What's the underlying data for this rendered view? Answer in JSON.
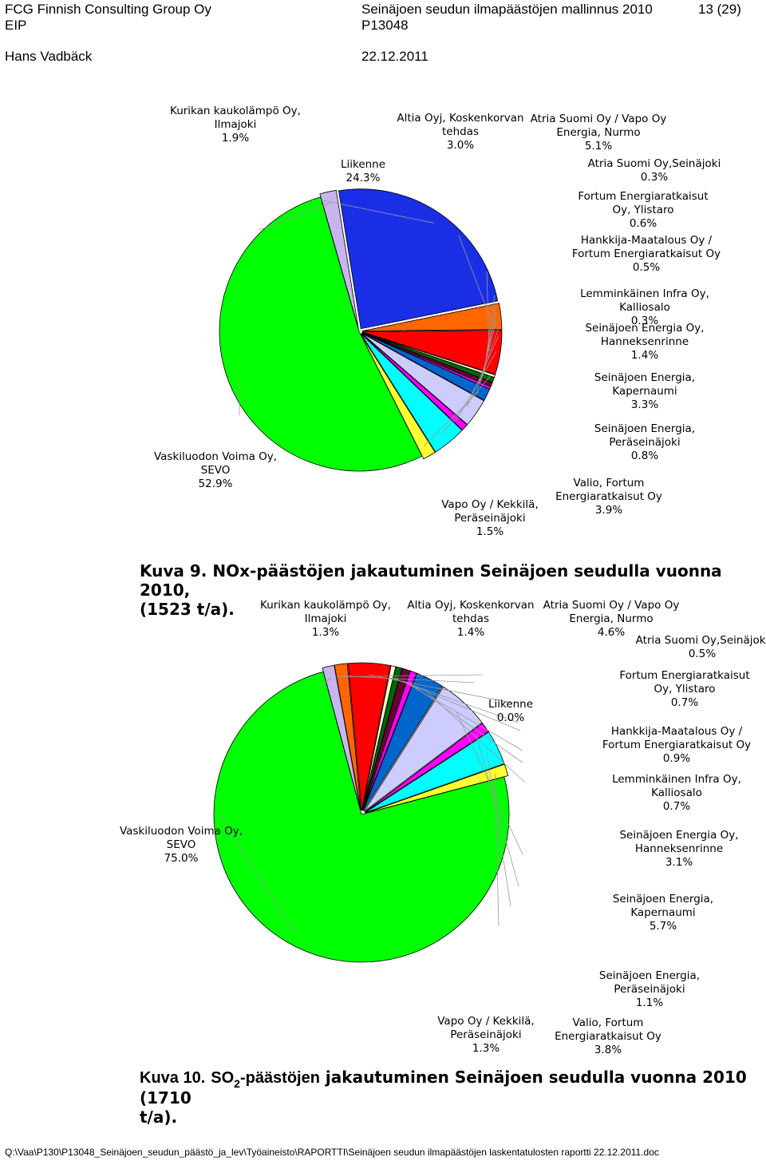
{
  "header": {
    "company": "FCG Finnish Consulting Group Oy",
    "unit": "EIP",
    "author": "Hans Vadbäck",
    "report_title": "Seinäjoen seudun ilmapäästöjen mallinnus 2010",
    "project": "P13048",
    "date": "22.12.2011",
    "page": "13 (29)"
  },
  "caption9": {
    "label": "Kuva 9.",
    "text": "NOx-päästöjen jakautuminen Seinäjoen seudulla vuonna 2010,",
    "text2": "(1523 t/a)."
  },
  "caption10": {
    "label": "Kuva 10.",
    "pre": "SO",
    "sub": "2",
    "mid": "-päästöjen",
    "post": " jakautuminen Seinäjoen seudulla vuonna 2010 (1710",
    "line2": "t/a)."
  },
  "footer": {
    "path": "Q:\\Vaa\\P130\\P13048_Seinäjoen_seudun_päästö_ja_lev\\Työaineisto\\RAPORTTI\\Seinäjoen seudun ilmapäästöjen laskentatulosten raportti 22.12.2011.doc"
  },
  "chart_data": [
    {
      "type": "pie",
      "title": "",
      "slices": [
        {
          "label": "Kurikan kaukolämpö Oy, Ilmajoki",
          "value": 1.9,
          "pct": "1.9%",
          "color": "#c8b4ee"
        },
        {
          "label": "Liikenne",
          "value": 24.3,
          "pct": "24.3%",
          "color": "#1a2ee6"
        },
        {
          "label": "Altia Oyj, Koskenkorvan tehdas",
          "value": 3.0,
          "pct": "3.0%",
          "color": "#ff6600"
        },
        {
          "label": "Atria Suomi Oy / Vapo Oy Energia, Nurmo",
          "value": 5.1,
          "pct": "5.1%",
          "color": "#ff0000"
        },
        {
          "label": "Atria Suomi Oy,Seinäjoki",
          "value": 0.3,
          "pct": "0.3%",
          "color": "#ffffcc"
        },
        {
          "label": "Fortum Energiaratkaisut Oy, Ylistaro",
          "value": 0.6,
          "pct": "0.6%",
          "color": "#006600"
        },
        {
          "label": "Hankkija-Maatalous Oy / Fortum Energiaratkaisut Oy",
          "value": 0.5,
          "pct": "0.5%",
          "color": "#660033"
        },
        {
          "label": "Lemminkäinen Infra Oy, Kalliosalo",
          "value": 0.3,
          "pct": "0.3%",
          "color": "#ff00ff"
        },
        {
          "label": "Seinäjoen Energia Oy, Hanneksenrinne",
          "value": 1.4,
          "pct": "1.4%",
          "color": "#0066cc"
        },
        {
          "label": "Seinäjoen Energia, Kapernaumi",
          "value": 3.3,
          "pct": "3.3%",
          "color": "#ccccff"
        },
        {
          "label": "Seinäjoen Energia, Peräseinäjoki",
          "value": 0.8,
          "pct": "0.8%",
          "color": "#ff00ff"
        },
        {
          "label": "Valio, Fortum Energiaratkaisut Oy",
          "value": 3.9,
          "pct": "3.9%",
          "color": "#00ffff"
        },
        {
          "label": "Vapo Oy / Kekkilä, Peräseinäjoki",
          "value": 1.5,
          "pct": "1.5%",
          "color": "#ffff33"
        },
        {
          "label": "Vaskiluodon Voima Oy, SEVO",
          "value": 52.9,
          "pct": "52.9%",
          "color": "#00ff00"
        }
      ]
    },
    {
      "type": "pie",
      "title": "",
      "slices": [
        {
          "label": "Kurikan kaukolämpö Oy, Ilmajoki",
          "value": 1.3,
          "pct": "1.3%",
          "color": "#c8b4ee"
        },
        {
          "label": "Liikenne",
          "value": 0.0,
          "pct": "0.0%",
          "color": "#1a2ee6"
        },
        {
          "label": "Altia Oyj, Koskenkorvan tehdas",
          "value": 1.4,
          "pct": "1.4%",
          "color": "#ff6600"
        },
        {
          "label": "Atria Suomi Oy / Vapo Oy Energia, Nurmo",
          "value": 4.6,
          "pct": "4.6%",
          "color": "#ff0000"
        },
        {
          "label": "Atria Suomi Oy,Seinäjoki",
          "value": 0.5,
          "pct": "0.5%",
          "color": "#ffffcc"
        },
        {
          "label": "Fortum Energiaratkaisut Oy, Ylistaro",
          "value": 0.7,
          "pct": "0.7%",
          "color": "#006600"
        },
        {
          "label": "Hankkija-Maatalous Oy / Fortum Energiaratkaisut Oy",
          "value": 0.9,
          "pct": "0.9%",
          "color": "#660033"
        },
        {
          "label": "Lemminkäinen Infra Oy, Kalliosalo",
          "value": 0.7,
          "pct": "0.7%",
          "color": "#ff00ff"
        },
        {
          "label": "Seinäjoen Energia Oy, Hanneksenrinne",
          "value": 3.1,
          "pct": "3.1%",
          "color": "#0066cc"
        },
        {
          "label": "Seinäjoen Energia, Kapernaumi",
          "value": 5.7,
          "pct": "5.7%",
          "color": "#ccccff"
        },
        {
          "label": "Seinäjoen Energia, Peräseinäjoki",
          "value": 1.1,
          "pct": "1.1%",
          "color": "#ff00ff"
        },
        {
          "label": "Valio, Fortum Energiaratkaisut Oy",
          "value": 3.8,
          "pct": "3.8%",
          "color": "#00ffff"
        },
        {
          "label": "Vapo Oy / Kekkilä, Peräseinäjoki",
          "value": 1.3,
          "pct": "1.3%",
          "color": "#ffff33"
        },
        {
          "label": "Vaskiluodon Voima Oy, SEVO",
          "value": 75.0,
          "pct": "75.0%",
          "color": "#00ff00"
        }
      ]
    }
  ]
}
